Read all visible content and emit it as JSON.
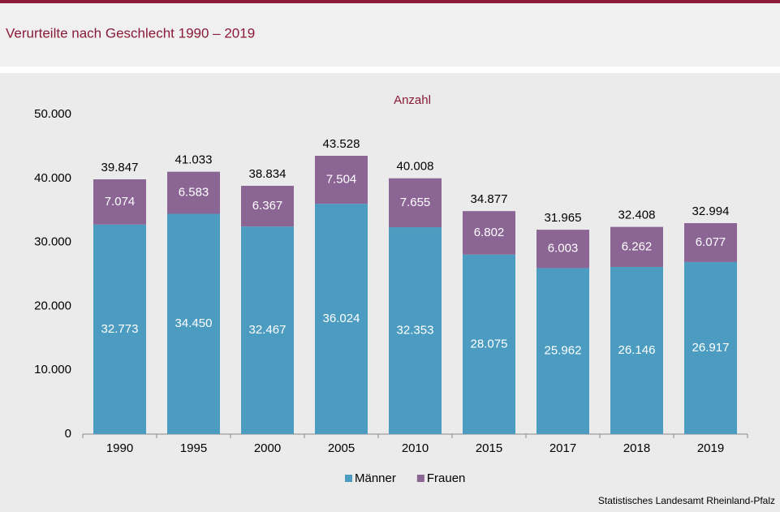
{
  "chart_data": {
    "type": "stacked-bar",
    "title": "Verurteilte nach Geschlecht 1990 – 2019",
    "y_label": "Anzahl",
    "source": "Statistisches Landesamt Rheinland-Pfalz",
    "categories": [
      "1990",
      "1995",
      "2000",
      "2005",
      "2010",
      "2015",
      "2017",
      "2018",
      "2019"
    ],
    "series": [
      {
        "name": "Männer",
        "color": "#4b9cc0",
        "values": [
          32773,
          34450,
          32467,
          36024,
          32353,
          28075,
          25962,
          26146,
          26917
        ],
        "value_labels": [
          "32.773",
          "34.450",
          "32.467",
          "36.024",
          "32.353",
          "28.075",
          "25.962",
          "26.146",
          "26.917"
        ]
      },
      {
        "name": "Frauen",
        "color": "#8b6594",
        "values": [
          7074,
          6583,
          6367,
          7504,
          7655,
          6802,
          6003,
          6262,
          6077
        ],
        "value_labels": [
          "7.074",
          "6.583",
          "6.367",
          "7.504",
          "7.655",
          "6.802",
          "6.003",
          "6.262",
          "6.077"
        ]
      }
    ],
    "totals": {
      "values": [
        39847,
        41033,
        38834,
        43528,
        40008,
        34877,
        31965,
        32408,
        32994
      ],
      "value_labels": [
        "39.847",
        "41.033",
        "38.834",
        "43.528",
        "40.008",
        "34.877",
        "31.965",
        "32.408",
        "32.994"
      ]
    },
    "ylim": [
      0,
      50000
    ],
    "yticks": [
      0,
      {
        "value": 10000,
        "label": "10.000"
      },
      {
        "value": 20000,
        "label": "20.000"
      },
      {
        "value": 30000,
        "label": "30.000"
      },
      {
        "value": 40000,
        "label": "40.000"
      },
      {
        "value": 50000,
        "label": "50.000"
      }
    ],
    "grid": false,
    "legend": "bottom"
  }
}
